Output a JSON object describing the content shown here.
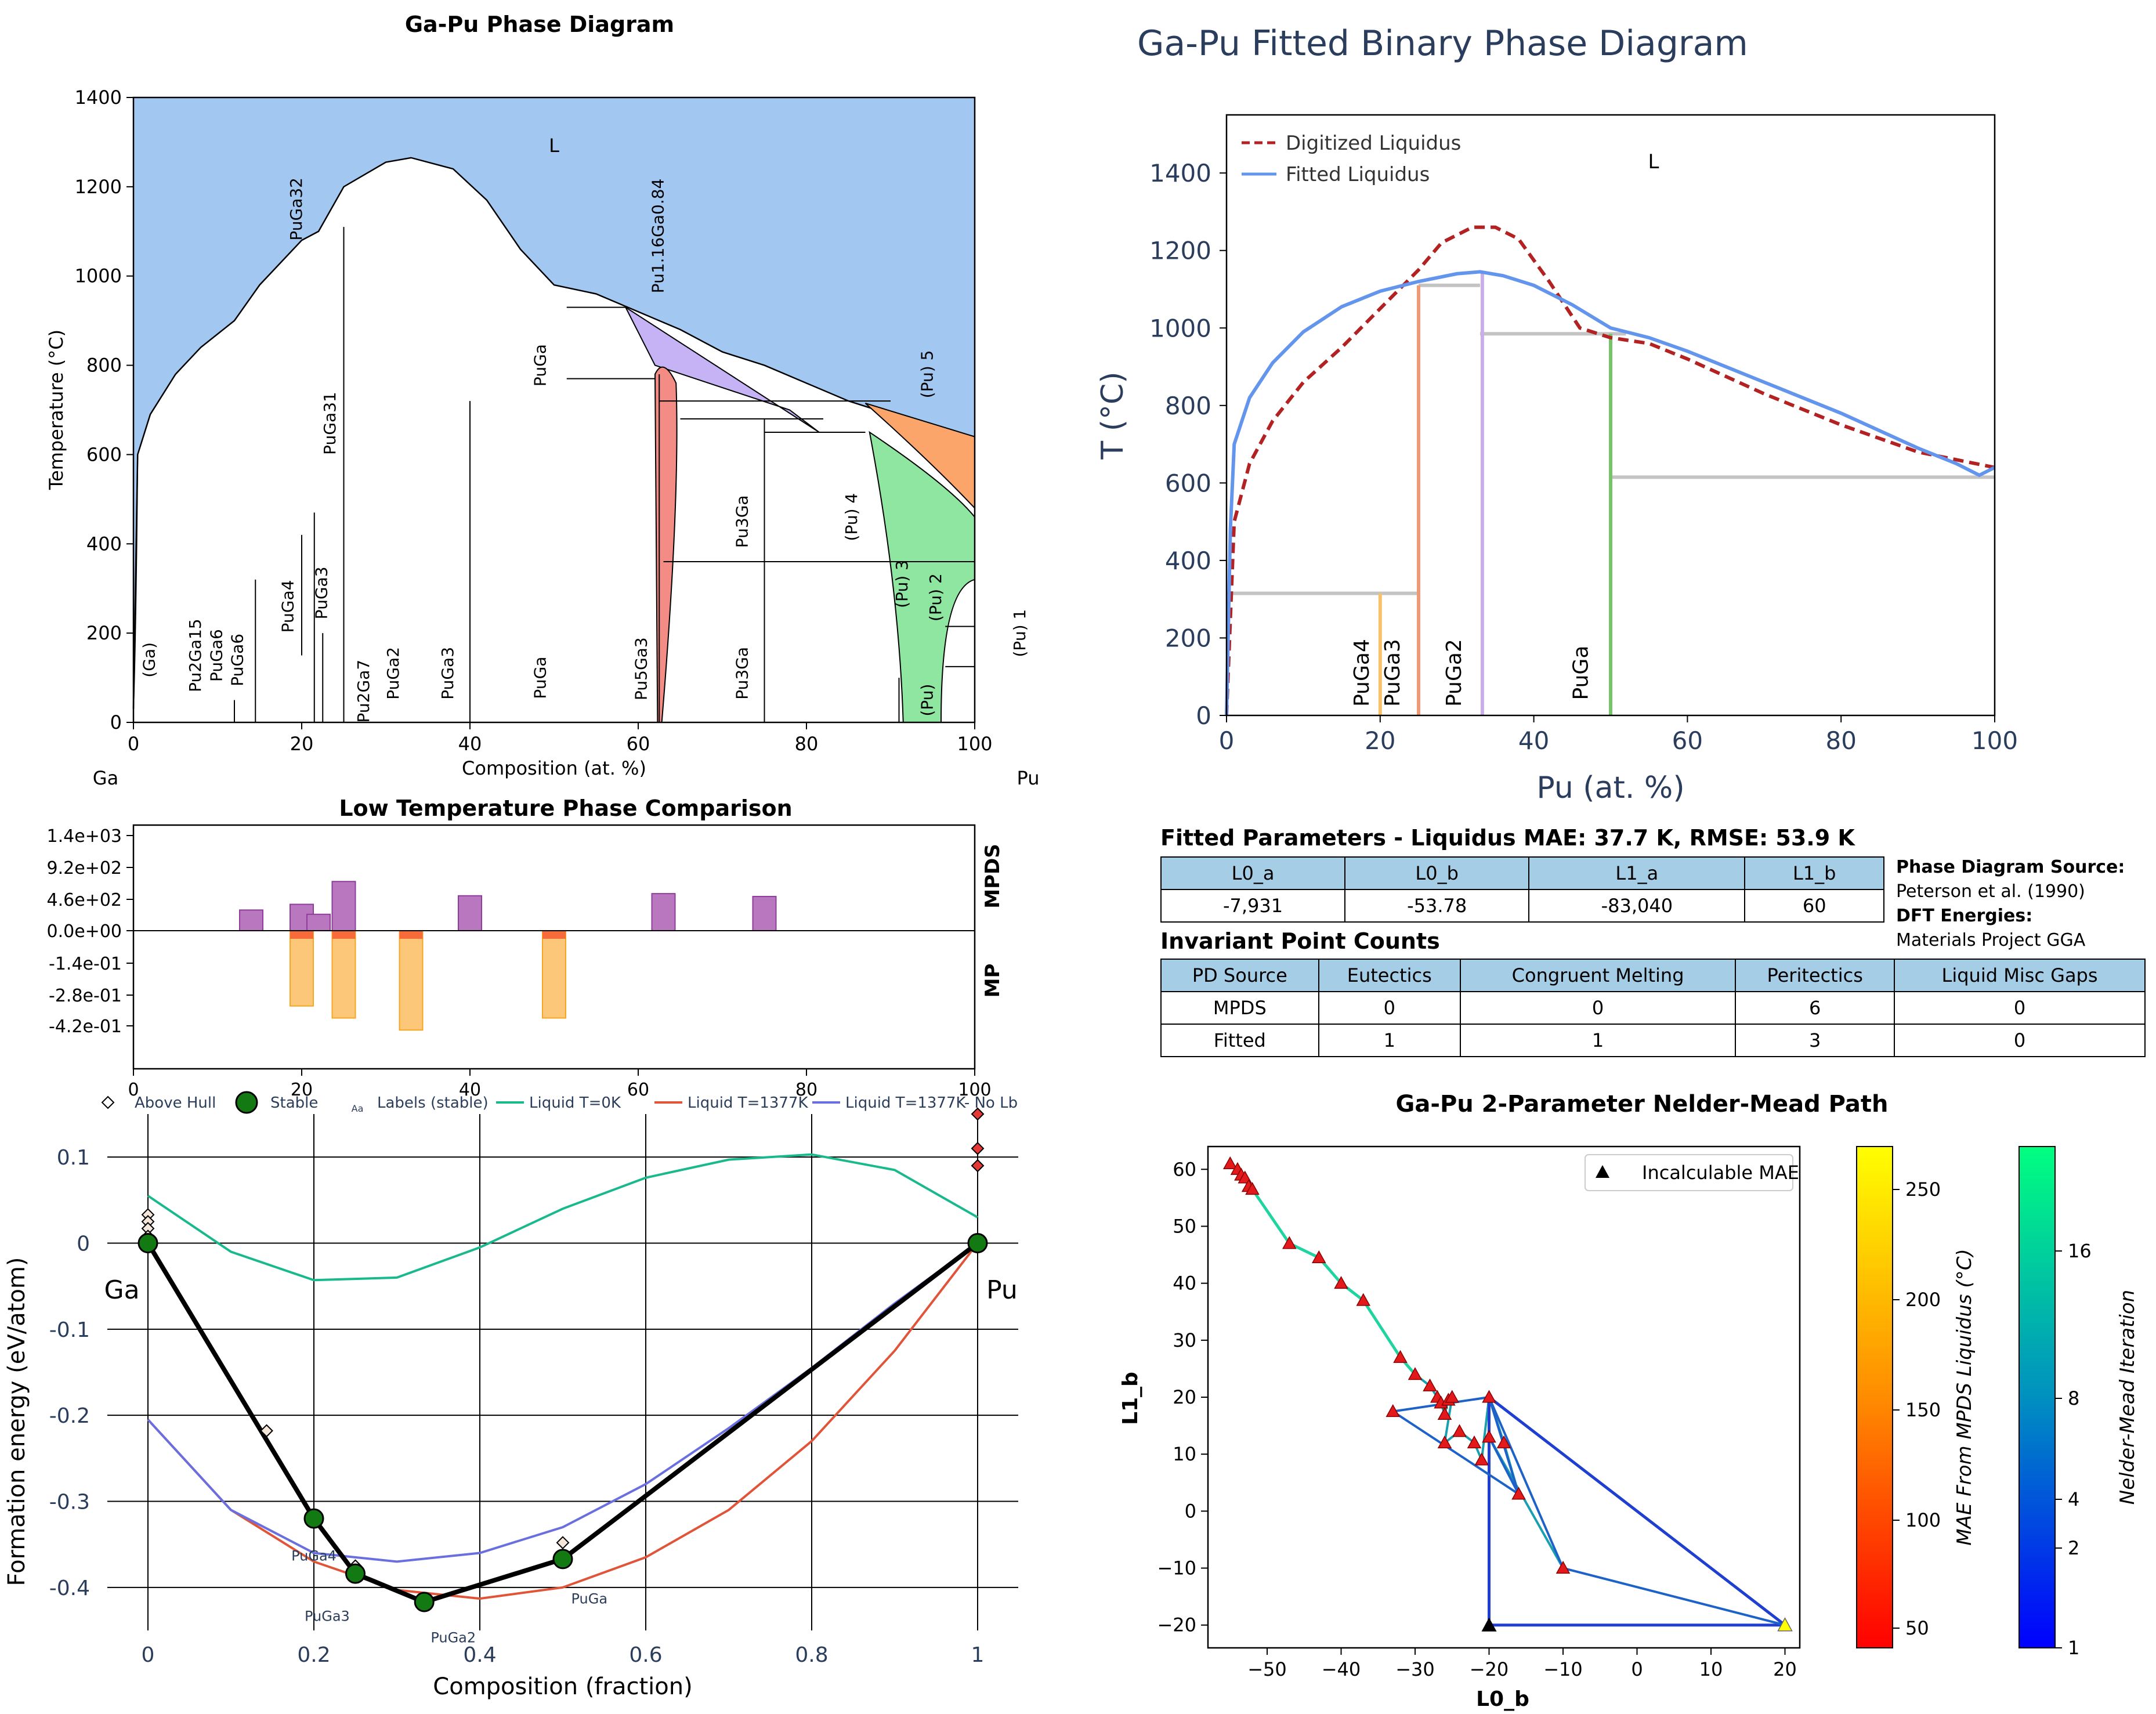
{
  "panels": {
    "phase_diagram": {
      "title": "Ga-Pu Phase Diagram",
      "xlabel": "Composition (at. %)",
      "ylabel": "Temperature (°C)",
      "x_ticks": [
        "0",
        "20",
        "40",
        "60",
        "80",
        "100"
      ],
      "y_ticks": [
        "0",
        "200",
        "400",
        "600",
        "800",
        "1000",
        "1200",
        "1400"
      ],
      "left_element": "Ga",
      "right_element": "Pu",
      "liquid_label": "L",
      "phase_labels": [
        "PuGa32",
        "Pu1.16Ga0.84",
        "PuGa",
        "PuGa31",
        "(Pu) 5",
        "PuGa4",
        "PuGa3",
        "Pu3Ga",
        "(Pu) 4",
        "(Pu) 3",
        "(Pu) 2",
        "(Pu) 1",
        "(Ga)",
        "Pu2Ga15",
        "PuGa6",
        "PuGa6",
        "Pu2Ga7",
        "PuGa2",
        "PuGa3",
        "PuGa",
        "Pu5Ga3",
        "Pu3Ga",
        "(Pu)"
      ]
    },
    "low_temp": {
      "title": "Low Temperature Phase Comparison",
      "y_ticks": [
        "1.4e+03",
        "9.2e+02",
        "4.6e+02",
        "0.0e+00",
        "-1.4e-01",
        "-2.8e-01",
        "-4.2e-01"
      ],
      "x_ticks": [
        "0",
        "20",
        "40",
        "60",
        "80",
        "100"
      ],
      "mpds_label": "MPDS",
      "mp_label": "MP"
    },
    "hull": {
      "xlabel": "Composition (fraction)",
      "ylabel": "Formation energy (eV/atom)",
      "x_ticks": [
        "0",
        "0.2",
        "0.4",
        "0.6",
        "0.8",
        "1"
      ],
      "y_ticks": [
        "0.1",
        "0",
        "-0.1",
        "-0.2",
        "-0.3",
        "-0.4"
      ],
      "left_element": "Ga",
      "right_element": "Pu",
      "legend": [
        "Above Hull",
        "Stable",
        "Labels (stable)",
        "Liquid T=0K",
        "Liquid T=1377K",
        "Liquid T=1377K- No Lb"
      ],
      "labels_icon": "Aa",
      "stable_labels": [
        "PuGa4",
        "PuGa3",
        "PuGa2",
        "PuGa"
      ]
    },
    "fitted": {
      "title": "Ga-Pu Fitted Binary Phase Diagram",
      "xlabel": "Pu (at. %)",
      "ylabel": "T (°C)",
      "x_ticks": [
        "0",
        "20",
        "40",
        "60",
        "80",
        "100"
      ],
      "y_ticks": [
        "0",
        "200",
        "400",
        "600",
        "800",
        "1000",
        "1200",
        "1400"
      ],
      "legend": [
        "Digitized Liquidus",
        "Fitted Liquidus"
      ],
      "liquid_label": "L",
      "phase_labels": [
        "PuGa4",
        "PuGa3",
        "PuGa2",
        "PuGa"
      ]
    },
    "params": {
      "title": "Fitted Parameters - Liquidus MAE: 37.7 K, RMSE: 53.9 K",
      "headers": [
        "L0_a",
        "L0_b",
        "L1_a",
        "L1_b"
      ],
      "values": [
        "-7,931",
        "-53.78",
        "-83,040",
        "60"
      ],
      "source_title": "Phase Diagram Source:",
      "source_value": "Peterson et al. (1990)",
      "dft_title": "DFT Energies:",
      "dft_value": "Materials Project GGA"
    },
    "invariants": {
      "title": "Invariant Point Counts",
      "headers": [
        "PD Source",
        "Eutectics",
        "Congruent Melting",
        "Peritectics",
        "Liquid Misc Gaps"
      ],
      "rows": [
        [
          "MPDS",
          "0",
          "0",
          "6",
          "0"
        ],
        [
          "Fitted",
          "1",
          "1",
          "3",
          "0"
        ]
      ]
    },
    "nelder": {
      "title": "Ga-Pu 2-Parameter Nelder-Mead Path",
      "xlabel": "L0_b",
      "ylabel": "L1_b",
      "x_ticks": [
        "−50",
        "−40",
        "−30",
        "−20",
        "−10",
        "0",
        "10",
        "20"
      ],
      "y_ticks": [
        "60",
        "50",
        "40",
        "30",
        "20",
        "10",
        "0",
        "−10",
        "−20"
      ],
      "legend": "Incalculable MAE",
      "cbar1_label": "MAE From MPDS Liquidus (°C)",
      "cbar1_ticks": [
        "250",
        "200",
        "150",
        "100",
        "50"
      ],
      "cbar2_label": "Nelder-Mead Iteration",
      "cbar2_ticks": [
        "16",
        "8",
        "4",
        "2",
        "1"
      ]
    }
  },
  "chart_data": [
    {
      "type": "area",
      "title": "Ga-Pu Phase Diagram",
      "xlabel": "Composition (at. %)",
      "ylabel": "Temperature (°C)",
      "xlim": [
        0,
        100
      ],
      "ylim": [
        0,
        1400
      ],
      "series": [
        {
          "x": [
            0,
            0.5,
            2,
            5,
            8,
            12,
            15,
            20,
            22,
            25,
            30,
            33,
            38,
            42,
            46,
            50,
            55,
            60,
            65,
            70,
            75,
            80,
            85,
            90,
            95,
            100
          ],
          "y": [
            30,
            600,
            690,
            780,
            840,
            900,
            980,
            1080,
            1100,
            1200,
            1255,
            1265,
            1240,
            1170,
            1060,
            980,
            960,
            920,
            880,
            830,
            800,
            760,
            720,
            690,
            660,
            640
          ]
        }
      ]
    },
    {
      "type": "bar",
      "title": "Low Temperature Phase Comparison",
      "categories": [
        14,
        20,
        22,
        25,
        33,
        40,
        50,
        63,
        75
      ],
      "series": [
        {
          "name": "MPDS",
          "values": [
            290,
            370,
            230,
            690,
            0,
            490,
            0,
            520,
            480
          ]
        },
        {
          "name": "MP",
          "values": [
            0,
            -0.25,
            0,
            -0.29,
            -0.33,
            0,
            -0.29,
            0,
            0
          ]
        }
      ]
    },
    {
      "type": "line",
      "xlabel": "Composition (fraction)",
      "ylabel": "Formation energy (eV/atom)",
      "xlim": [
        0,
        1
      ],
      "ylim": [
        -0.45,
        0.15
      ],
      "series": [
        {
          "name": "Stable",
          "x": [
            0,
            0.2,
            0.25,
            0.333,
            0.5,
            1
          ],
          "y": [
            0,
            -0.32,
            -0.384,
            -0.417,
            -0.367,
            0
          ]
        },
        {
          "name": "Above Hull",
          "x": [
            0,
            0,
            0,
            0,
            0.143,
            0.25,
            0.5,
            1,
            1,
            1,
            1
          ],
          "y": [
            0.033,
            0.025,
            0.017,
            0.008,
            -0.218,
            -0.375,
            -0.348,
            0.15,
            0.11,
            0.09,
            0.0
          ]
        },
        {
          "name": "Liquid T=0K",
          "x": [
            0,
            0.1,
            0.2,
            0.3,
            0.4,
            0.5,
            0.6,
            0.7,
            0.8,
            0.9,
            1
          ],
          "y": [
            0.055,
            -0.01,
            -0.043,
            -0.04,
            -0.005,
            0.04,
            0.076,
            0.097,
            0.103,
            0.085,
            0.03
          ]
        },
        {
          "name": "Liquid T=1377K",
          "x": [
            0,
            0.1,
            0.2,
            0.3,
            0.4,
            0.5,
            0.6,
            0.7,
            0.8,
            0.9,
            1
          ],
          "y": [
            -0.205,
            -0.31,
            -0.37,
            -0.403,
            -0.413,
            -0.4,
            -0.365,
            -0.31,
            -0.23,
            -0.125,
            0
          ]
        },
        {
          "name": "Liquid T=1377K- No Lb",
          "x": [
            0,
            0.1,
            0.2,
            0.3,
            0.4,
            0.5,
            0.6,
            0.7,
            0.8,
            0.9,
            1
          ],
          "y": [
            -0.205,
            -0.31,
            -0.36,
            -0.37,
            -0.36,
            -0.33,
            -0.28,
            -0.215,
            -0.145,
            -0.07,
            0
          ]
        }
      ]
    },
    {
      "type": "line",
      "title": "Ga-Pu Fitted Binary Phase Diagram",
      "xlabel": "Pu (at. %)",
      "ylabel": "T (°C)",
      "xlim": [
        0,
        100
      ],
      "ylim": [
        0,
        1550
      ],
      "series": [
        {
          "name": "Digitized Liquidus",
          "x": [
            0,
            1,
            3,
            6,
            10,
            15,
            20,
            25,
            28,
            32,
            35,
            38,
            42,
            46,
            50,
            55,
            60,
            70,
            80,
            90,
            95,
            100
          ],
          "y": [
            0,
            500,
            650,
            760,
            860,
            950,
            1050,
            1150,
            1220,
            1260,
            1260,
            1230,
            1120,
            1000,
            975,
            960,
            920,
            830,
            750,
            680,
            660,
            640
          ]
        },
        {
          "name": "Fitted Liquidus",
          "x": [
            0,
            0.5,
            1,
            3,
            6,
            10,
            15,
            20,
            25,
            30,
            33,
            36,
            40,
            45,
            50,
            55,
            60,
            70,
            80,
            90,
            95,
            98,
            100
          ],
          "y": [
            0,
            480,
            700,
            820,
            910,
            990,
            1055,
            1095,
            1120,
            1140,
            1145,
            1135,
            1110,
            1060,
            1000,
            975,
            940,
            860,
            780,
            690,
            650,
            620,
            640
          ]
        }
      ]
    },
    {
      "type": "scatter",
      "title": "Ga-Pu 2-Parameter Nelder-Mead Path",
      "xlabel": "L0_b",
      "ylabel": "L1_b",
      "xlim": [
        -58,
        22
      ],
      "ylim": [
        -24,
        64
      ],
      "series": [
        {
          "name": "Nelder-Mead Path",
          "x": [
            -55,
            -54,
            -53.5,
            -53,
            -52.5,
            -52,
            -47,
            -43,
            -40,
            -37,
            -32,
            -30,
            -28,
            -27,
            -26.5,
            -26,
            -25.5,
            -25,
            -26,
            -24,
            -22,
            -21,
            -20,
            -18,
            -16,
            -20,
            -10,
            20,
            -33
          ],
          "y": [
            61,
            60,
            59,
            58.5,
            57,
            56.5,
            47,
            44.5,
            40,
            37,
            27,
            24,
            22,
            20,
            19,
            17,
            19.5,
            20,
            12,
            14,
            12,
            9,
            20,
            12,
            3,
            13,
            -10,
            -20,
            17.5
          ]
        },
        {
          "name": "Incalculable MAE",
          "x": [
            -20
          ],
          "y": [
            -20
          ]
        }
      ]
    }
  ]
}
